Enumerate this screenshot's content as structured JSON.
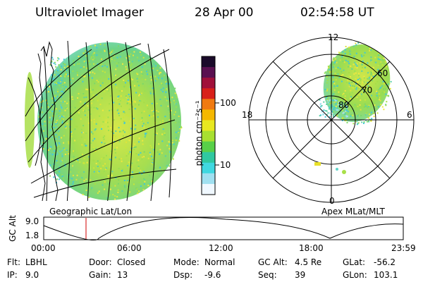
{
  "header": {
    "instrument": "Ultraviolet Imager",
    "date": "28 Apr 00",
    "time": "02:54:58 UT"
  },
  "left_panel": {
    "projection_label": "Geographic Lat/Lon"
  },
  "colorbar": {
    "unit_label": "photon cm⁻²s⁻¹",
    "ticks": [
      "100",
      "10"
    ],
    "scale": "log",
    "colors": [
      "#1a0a2a",
      "#5a1050",
      "#a0103a",
      "#d8201a",
      "#f07a10",
      "#f5b800",
      "#e8e820",
      "#a8e030",
      "#58d048",
      "#30c8a0",
      "#40d8e0",
      "#a0e0f0",
      "#f0f8ff"
    ]
  },
  "polar_panel": {
    "label": "Apex MLat/MLT",
    "mlt_labels": [
      "12",
      "18",
      "6",
      "0"
    ],
    "lat_labels": [
      "60",
      "70",
      "80"
    ]
  },
  "altitude_plot": {
    "ylabel": "GC Alt",
    "yticks": [
      "9.0",
      "1.8"
    ],
    "xticks": [
      "00:00",
      "06:00",
      "12:00",
      "18:00",
      "23:59"
    ],
    "marker_time": "02:54:58",
    "marker_color": "#d00000"
  },
  "info_rows": [
    [
      {
        "label": "Flt:",
        "value": "LBHL"
      },
      {
        "label": "Door:",
        "value": "Closed"
      },
      {
        "label": "Mode:",
        "value": "Normal"
      },
      {
        "label": "GC Alt:",
        "value": "4.5 Re"
      },
      {
        "label": "GLat:",
        "value": "-56.2"
      }
    ],
    [
      {
        "label": "IP:",
        "value": "9.0"
      },
      {
        "label": "Gain:",
        "value": "13"
      },
      {
        "label": "Dsp:",
        "value": "-9.6"
      },
      {
        "label": "Seq:",
        "value": "39"
      },
      {
        "label": "GLon:",
        "value": "103.1"
      }
    ]
  ]
}
